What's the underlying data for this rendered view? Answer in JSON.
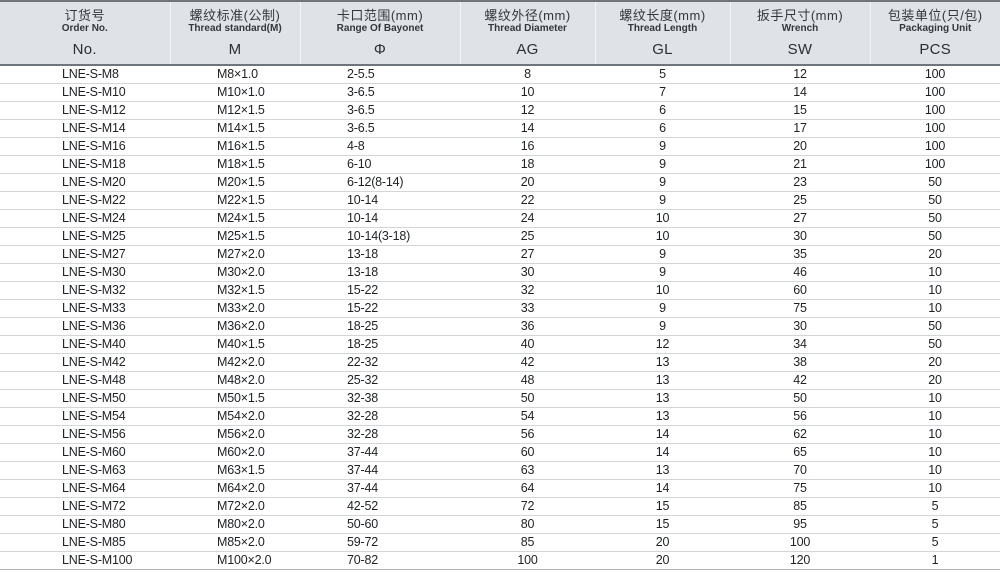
{
  "colors": {
    "header_bg": "#dfe3e8",
    "header_rule": "#70757b",
    "row_separator": "#d3d6d9",
    "text": "#1e2125"
  },
  "table": {
    "columns": [
      {
        "zh": "订货号",
        "en": "Order No.",
        "code": "No."
      },
      {
        "zh": "螺纹标准(公制)",
        "en": "Thread standard(M)",
        "code": "M"
      },
      {
        "zh": "卡口范围(mm)",
        "en": "Range Of Bayonet",
        "code": "Φ"
      },
      {
        "zh": "螺纹外径(mm)",
        "en": "Thread Diameter",
        "code": "AG"
      },
      {
        "zh": "螺纹长度(mm)",
        "en": "Thread Length",
        "code": "GL"
      },
      {
        "zh": "扳手尺寸(mm)",
        "en": "Wrench",
        "code": "SW"
      },
      {
        "zh": "包装单位(只/包)",
        "en": "Packaging Unit",
        "code": "PCS"
      }
    ],
    "rows": [
      [
        "LNE-S-M8",
        "M8×1.0",
        "2-5.5",
        "8",
        "5",
        "12",
        "100"
      ],
      [
        "LNE-S-M10",
        "M10×1.0",
        "3-6.5",
        "10",
        "7",
        "14",
        "100"
      ],
      [
        "LNE-S-M12",
        "M12×1.5",
        "3-6.5",
        "12",
        "6",
        "15",
        "100"
      ],
      [
        "LNE-S-M14",
        "M14×1.5",
        "3-6.5",
        "14",
        "6",
        "17",
        "100"
      ],
      [
        "LNE-S-M16",
        "M16×1.5",
        "4-8",
        "16",
        "9",
        "20",
        "100"
      ],
      [
        "LNE-S-M18",
        "M18×1.5",
        "6-10",
        "18",
        "9",
        "21",
        "100"
      ],
      [
        "LNE-S-M20",
        "M20×1.5",
        "6-12(8-14)",
        "20",
        "9",
        "23",
        "50"
      ],
      [
        "LNE-S-M22",
        "M22×1.5",
        "10-14",
        "22",
        "9",
        "25",
        "50"
      ],
      [
        "LNE-S-M24",
        "M24×1.5",
        "10-14",
        "24",
        "10",
        "27",
        "50"
      ],
      [
        "LNE-S-M25",
        "M25×1.5",
        "10-14(3-18)",
        "25",
        "10",
        "30",
        "50"
      ],
      [
        "LNE-S-M27",
        "M27×2.0",
        "13-18",
        "27",
        "9",
        "35",
        "20"
      ],
      [
        "LNE-S-M30",
        "M30×2.0",
        "13-18",
        "30",
        "9",
        "46",
        "10"
      ],
      [
        "LNE-S-M32",
        "M32×1.5",
        "15-22",
        "32",
        "10",
        "60",
        "10"
      ],
      [
        "LNE-S-M33",
        "M33×2.0",
        "15-22",
        "33",
        "9",
        "75",
        "10"
      ],
      [
        "LNE-S-M36",
        "M36×2.0",
        "18-25",
        "36",
        "9",
        "30",
        "50"
      ],
      [
        "LNE-S-M40",
        "M40×1.5",
        "18-25",
        "40",
        "12",
        "34",
        "50"
      ],
      [
        "LNE-S-M42",
        "M42×2.0",
        "22-32",
        "42",
        "13",
        "38",
        "20"
      ],
      [
        "LNE-S-M48",
        "M48×2.0",
        "25-32",
        "48",
        "13",
        "42",
        "20"
      ],
      [
        "LNE-S-M50",
        "M50×1.5",
        "32-38",
        "50",
        "13",
        "50",
        "10"
      ],
      [
        "LNE-S-M54",
        "M54×2.0",
        "32-28",
        "54",
        "13",
        "56",
        "10"
      ],
      [
        "LNE-S-M56",
        "M56×2.0",
        "32-28",
        "56",
        "14",
        "62",
        "10"
      ],
      [
        "LNE-S-M60",
        "M60×2.0",
        "37-44",
        "60",
        "14",
        "65",
        "10"
      ],
      [
        "LNE-S-M63",
        "M63×1.5",
        "37-44",
        "63",
        "13",
        "70",
        "10"
      ],
      [
        "LNE-S-M64",
        "M64×2.0",
        "37-44",
        "64",
        "14",
        "75",
        "10"
      ],
      [
        "LNE-S-M72",
        "M72×2.0",
        "42-52",
        "72",
        "15",
        "85",
        "5"
      ],
      [
        "LNE-S-M80",
        "M80×2.0",
        "50-60",
        "80",
        "15",
        "95",
        "5"
      ],
      [
        "LNE-S-M85",
        "M85×2.0",
        "59-72",
        "85",
        "20",
        "100",
        "5"
      ],
      [
        "LNE-S-M100",
        "M100×2.0",
        "70-82",
        "100",
        "20",
        "120",
        "1"
      ]
    ]
  }
}
